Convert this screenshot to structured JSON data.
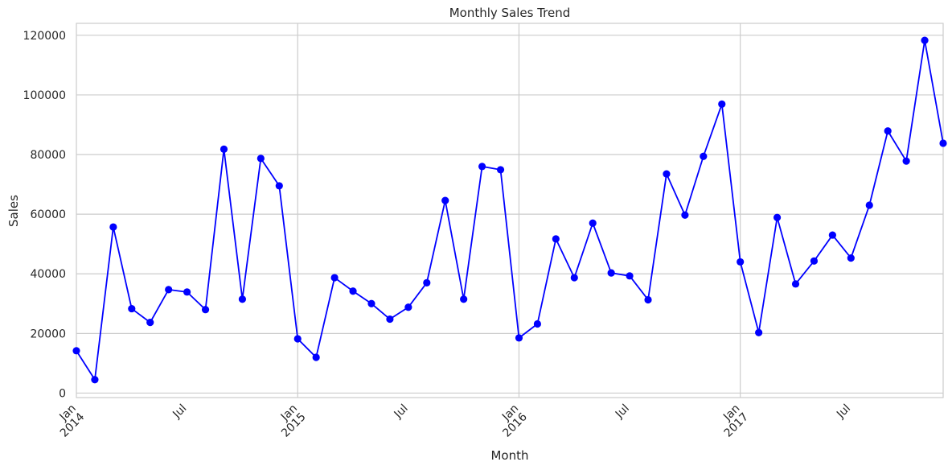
{
  "chart_data": {
    "type": "line",
    "title": "Monthly Sales Trend",
    "xlabel": "Month",
    "ylabel": "Sales",
    "ylim": [
      -1500,
      124000
    ],
    "yticks": [
      0,
      20000,
      40000,
      60000,
      80000,
      100000,
      120000
    ],
    "grid": true,
    "series_color": "#0000ff",
    "x": [
      "2014-01",
      "2014-02",
      "2014-03",
      "2014-04",
      "2014-05",
      "2014-06",
      "2014-07",
      "2014-08",
      "2014-09",
      "2014-10",
      "2014-11",
      "2014-12",
      "2015-01",
      "2015-02",
      "2015-03",
      "2015-04",
      "2015-05",
      "2015-06",
      "2015-07",
      "2015-08",
      "2015-09",
      "2015-10",
      "2015-11",
      "2015-12",
      "2016-01",
      "2016-02",
      "2016-03",
      "2016-04",
      "2016-05",
      "2016-06",
      "2016-07",
      "2016-08",
      "2016-09",
      "2016-10",
      "2016-11",
      "2016-12",
      "2017-01",
      "2017-02",
      "2017-03",
      "2017-04",
      "2017-05",
      "2017-06",
      "2017-07",
      "2017-08",
      "2017-09",
      "2017-10",
      "2017-11",
      "2017-12"
    ],
    "series": [
      {
        "values": [
          14200,
          4500,
          55700,
          28300,
          23700,
          34700,
          33900,
          28000,
          81800,
          31500,
          78700,
          69500,
          18200,
          12000,
          38700,
          34200,
          30000,
          24800,
          28800,
          37000,
          64600,
          31500,
          76000,
          74900,
          18500,
          23200,
          51700,
          38700,
          57000,
          40300,
          39300,
          31300,
          73500,
          59700,
          79400,
          96900,
          44000,
          20300,
          58900,
          36600,
          44300,
          53000,
          45300,
          63000,
          87900,
          77800,
          118300,
          83800
        ]
      }
    ],
    "xticks": [
      {
        "x": "2014-01",
        "lines": [
          "Jan",
          "2014"
        ]
      },
      {
        "x": "2014-07",
        "lines": [
          "Jul"
        ]
      },
      {
        "x": "2015-01",
        "lines": [
          "Jan",
          "2015"
        ]
      },
      {
        "x": "2015-07",
        "lines": [
          "Jul"
        ]
      },
      {
        "x": "2016-01",
        "lines": [
          "Jan",
          "2016"
        ]
      },
      {
        "x": "2016-07",
        "lines": [
          "Jul"
        ]
      },
      {
        "x": "2017-01",
        "lines": [
          "Jan",
          "2017"
        ]
      },
      {
        "x": "2017-07",
        "lines": [
          "Jul"
        ]
      }
    ],
    "major_gridlines_x": [
      "2015-01",
      "2016-01",
      "2017-01"
    ]
  }
}
